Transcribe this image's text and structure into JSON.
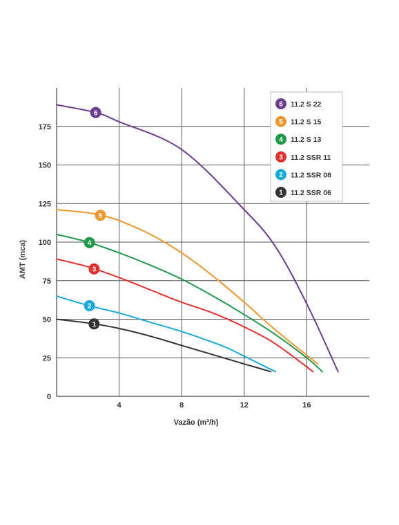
{
  "chart_data": {
    "type": "line",
    "title": "",
    "xlabel": "Vazão (m³/h)",
    "ylabel": "AMT (mca)",
    "xlim": [
      0,
      20
    ],
    "ylim": [
      0,
      200
    ],
    "x_ticks": [
      "4",
      "8",
      "12",
      "16"
    ],
    "y_ticks": [
      "0",
      "25",
      "50",
      "75",
      "100",
      "125",
      "150",
      "175"
    ],
    "grid": true,
    "legend_position": "top-right",
    "series": [
      {
        "name": "11.2 S 22",
        "marker": "6",
        "color": "#6a3d8f",
        "x": [
          0,
          2.5,
          4,
          8,
          12,
          14,
          16,
          18
        ],
        "y": [
          189,
          184,
          178,
          160,
          121,
          97,
          60,
          16
        ],
        "marker_x": 2.5
      },
      {
        "name": "11.2 S 15",
        "marker": "5",
        "color": "#f0962e",
        "x": [
          0,
          2,
          3,
          4,
          6,
          8,
          10,
          12,
          14,
          16.7
        ],
        "y": [
          121,
          119,
          117,
          114,
          105,
          93,
          78,
          61,
          43,
          21
        ],
        "marker_x": 2.8
      },
      {
        "name": "11.2 S 13",
        "marker": "4",
        "color": "#1f9a4a",
        "x": [
          0,
          2,
          4,
          6,
          8,
          10,
          12,
          14,
          16,
          17
        ],
        "y": [
          105,
          100,
          93,
          85,
          76,
          65,
          53,
          40,
          25,
          16
        ],
        "marker_x": 2.1
      },
      {
        "name": "11.2 SSR 11",
        "marker": "3",
        "color": "#e2302d",
        "x": [
          0,
          2,
          4,
          6,
          8,
          10,
          12,
          14,
          16.4
        ],
        "y": [
          89,
          84,
          77,
          69,
          61,
          54,
          45,
          34,
          16
        ],
        "marker_x": 2.4
      },
      {
        "name": "11.2 SSR 08",
        "marker": "2",
        "color": "#17a8de",
        "x": [
          0,
          2,
          4,
          6,
          8,
          10,
          11,
          12,
          14
        ],
        "y": [
          65,
          59,
          54,
          48,
          42,
          35,
          31,
          26,
          16
        ],
        "marker_x": 2.1
      },
      {
        "name": "11.2 SSR 06",
        "marker": "1",
        "color": "#333333",
        "x": [
          0,
          2.4,
          4,
          6,
          8,
          10,
          12,
          13.7
        ],
        "y": [
          50,
          47,
          44,
          39,
          33,
          27,
          21,
          16
        ],
        "marker_x": 2.4
      }
    ]
  }
}
